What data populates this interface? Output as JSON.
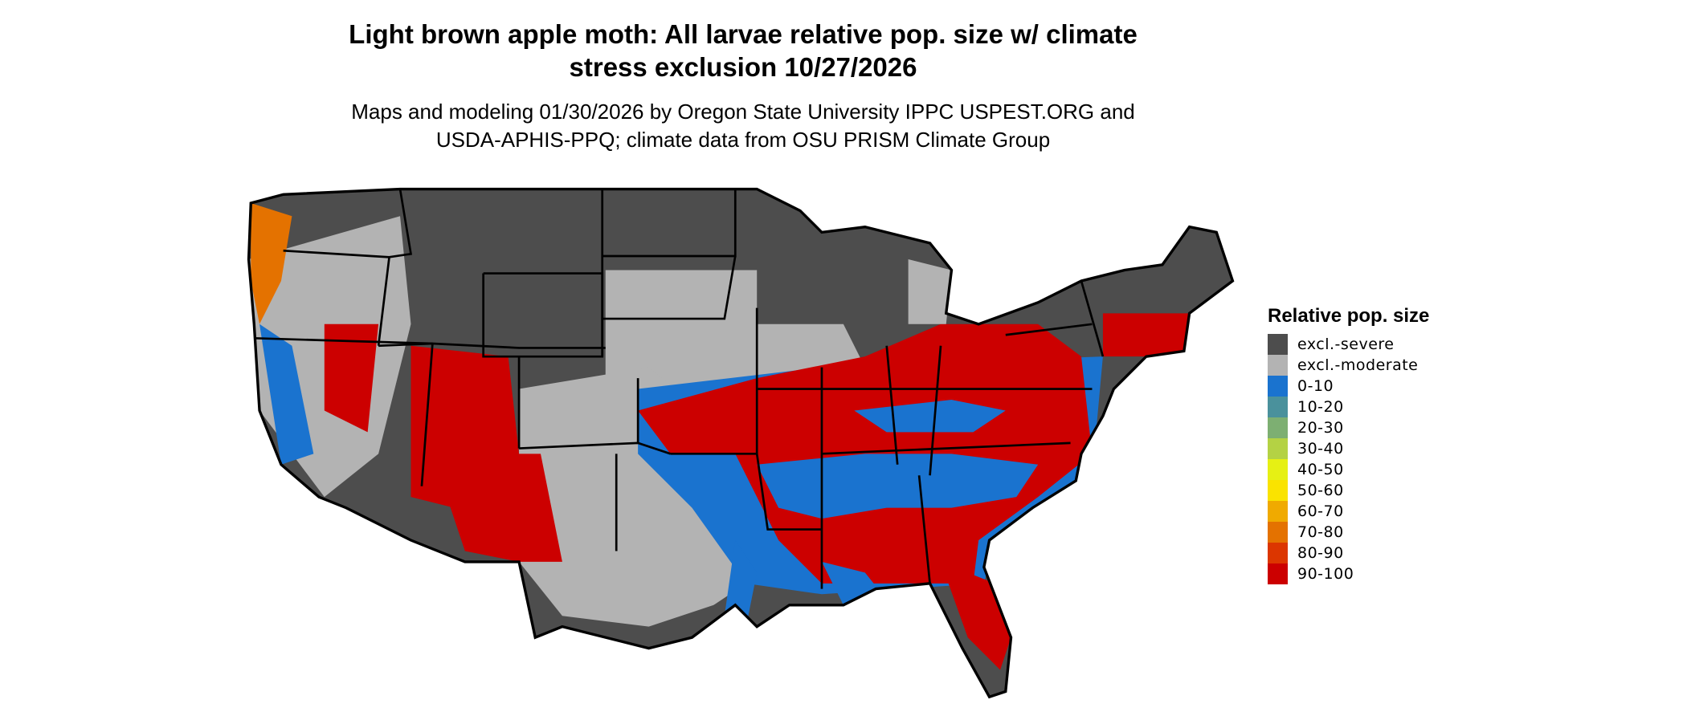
{
  "title": {
    "line1": "Light brown apple moth: All larvae relative pop. size w/ climate",
    "line2": "stress exclusion 10/27/2026"
  },
  "subtitle": {
    "line1": "Maps and modeling 01/30/2026 by Oregon State University IPPC USPEST.ORG and",
    "line2": "USDA-APHIS-PPQ; climate data from OSU PRISM Climate Group"
  },
  "legend": {
    "title": "Relative pop. size",
    "items": [
      {
        "label": "excl.-severe",
        "color": "#4d4d4d"
      },
      {
        "label": "excl.-moderate",
        "color": "#b3b3b3"
      },
      {
        "label": "0-10",
        "color": "#1a73cf"
      },
      {
        "label": "10-20",
        "color": "#4a919c"
      },
      {
        "label": "20-30",
        "color": "#7daf72"
      },
      {
        "label": "30-40",
        "color": "#b4d244"
      },
      {
        "label": "40-50",
        "color": "#e6f014"
      },
      {
        "label": "50-60",
        "color": "#fae300"
      },
      {
        "label": "60-70",
        "color": "#f0aa00"
      },
      {
        "label": "70-80",
        "color": "#e47200"
      },
      {
        "label": "80-90",
        "color": "#dc3600"
      },
      {
        "label": "90-100",
        "color": "#cc0000"
      }
    ]
  },
  "map": {
    "region": "Contiguous United States",
    "background_class_color": "#4d4d4d"
  }
}
